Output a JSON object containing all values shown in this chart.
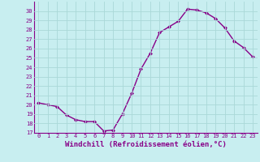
{
  "x": [
    0,
    1,
    2,
    3,
    4,
    5,
    6,
    7,
    8,
    9,
    10,
    11,
    12,
    13,
    14,
    15,
    16,
    17,
    18,
    19,
    20,
    21,
    22,
    23
  ],
  "y": [
    20.2,
    20.0,
    19.8,
    18.9,
    18.4,
    18.2,
    18.2,
    17.2,
    17.3,
    19.0,
    21.2,
    23.8,
    25.5,
    27.7,
    28.3,
    28.9,
    30.2,
    30.1,
    29.8,
    29.2,
    28.2,
    26.8,
    26.1,
    25.1
  ],
  "line_color": "#880088",
  "marker": "D",
  "marker_size": 2.0,
  "bg_color": "#c8eef0",
  "grid_color": "#aad8d8",
  "xlabel": "Windchill (Refroidissement éolien,°C)",
  "ylim": [
    17,
    31
  ],
  "xlim_left": -0.5,
  "xlim_right": 23.5,
  "yticks": [
    17,
    18,
    19,
    20,
    21,
    22,
    23,
    24,
    25,
    26,
    27,
    28,
    29,
    30
  ],
  "xticks": [
    0,
    1,
    2,
    3,
    4,
    5,
    6,
    7,
    8,
    9,
    10,
    11,
    12,
    13,
    14,
    15,
    16,
    17,
    18,
    19,
    20,
    21,
    22,
    23
  ],
  "tick_fontsize": 5.0,
  "xlabel_fontsize": 6.5,
  "line_width": 1.0,
  "spine_color": "#880088"
}
